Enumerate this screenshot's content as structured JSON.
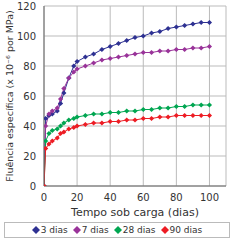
{
  "chart_data": {
    "type": "line",
    "x_label": "Tempo sob carga (dias)",
    "y_label": "Fluência específica (x 10⁻⁶ por MPa)",
    "x": [
      0,
      1,
      3,
      5,
      8,
      10,
      12,
      15,
      18,
      20,
      25,
      30,
      35,
      40,
      45,
      50,
      55,
      60,
      65,
      70,
      75,
      80,
      85,
      90,
      95,
      100
    ],
    "series": [
      {
        "name": "3 dias",
        "color": "#2e3192",
        "marker": "diamond",
        "values": [
          0,
          45,
          47,
          48,
          50,
          55,
          62,
          72,
          80,
          83,
          86,
          88,
          91,
          93,
          95,
          97,
          99,
          100,
          102,
          103,
          105,
          106,
          107,
          108,
          109,
          109
        ]
      },
      {
        "name": "7 dias",
        "color": "#993399",
        "marker": "diamond",
        "values": [
          0,
          40,
          48,
          50,
          52,
          58,
          65,
          72,
          76,
          78,
          80,
          82,
          84,
          85,
          86,
          87,
          88,
          89,
          89,
          90,
          90,
          91,
          91,
          92,
          92,
          93
        ]
      },
      {
        "name": "28 dias",
        "color": "#00a651",
        "marker": "diamond",
        "values": [
          0,
          30,
          35,
          37,
          38,
          40,
          42,
          44,
          45,
          46,
          47,
          48,
          48,
          49,
          49,
          50,
          50,
          51,
          51,
          52,
          52,
          53,
          53,
          54,
          54,
          54
        ]
      },
      {
        "name": "90 dias",
        "color": "#ed1c24",
        "marker": "diamond",
        "values": [
          0,
          25,
          28,
          30,
          32,
          35,
          36,
          38,
          39,
          40,
          41,
          42,
          42,
          43,
          43,
          44,
          44,
          45,
          45,
          46,
          46,
          47,
          47,
          47,
          47,
          47
        ]
      }
    ],
    "xlim": [
      0,
      110
    ],
    "xticks": [
      0,
      20,
      40,
      60,
      80,
      100
    ],
    "ylim": [
      0,
      120
    ],
    "yticks": [
      0,
      20,
      40,
      60,
      80,
      100,
      120
    ],
    "grid": true,
    "legend": "bottom"
  }
}
